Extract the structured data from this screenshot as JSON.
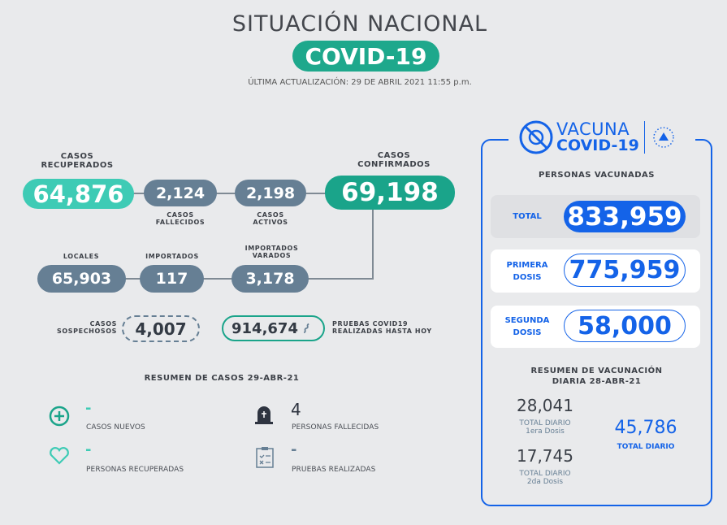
{
  "header": {
    "title": "SITUACIÓN NACIONAL",
    "badge": "COVID-19",
    "updated": "ÚLTIMA ACTUALIZACIÓN: 29 DE ABRIL 2021 11:55 p.m."
  },
  "cases": {
    "recuperados": {
      "label1": "CASOS",
      "label2": "RECUPERADOS",
      "value": "64,876"
    },
    "fallecidos": {
      "label1": "CASOS",
      "label2": "FALLECIDOS",
      "value": "2,124"
    },
    "activos": {
      "label1": "CASOS",
      "label2": "ACTIVOS",
      "value": "2,198"
    },
    "confirmados": {
      "label1": "CASOS",
      "label2": "CONFIRMADOS",
      "value": "69,198"
    },
    "locales": {
      "label": "LOCALES",
      "value": "65,903"
    },
    "importados": {
      "label": "IMPORTADOS",
      "value": "117"
    },
    "varados": {
      "label1": "IMPORTADOS",
      "label2": "VARADOS",
      "value": "3,178"
    },
    "sospechosos": {
      "label1": "CASOS",
      "label2": "SOSPECHOSOS",
      "value": "4,007"
    },
    "pruebas": {
      "label1": "PRUEBAS COVID19",
      "label2": "REALIZADAS HASTA HOY",
      "value": "914,674"
    }
  },
  "summary": {
    "title": "RESUMEN DE CASOS 29-ABR-21",
    "items": [
      {
        "value": "-",
        "label": "CASOS NUEVOS"
      },
      {
        "value": "4",
        "label": "PERSONAS FALLECIDAS"
      },
      {
        "value": "-",
        "label": "PERSONAS RECUPERADAS"
      },
      {
        "value": "-",
        "label": "PRUEBAS REALIZADAS"
      }
    ]
  },
  "vaccine": {
    "logo1": "VACUNA",
    "logo2": "COVID-19",
    "title": "PERSONAS VACUNADAS",
    "total": {
      "label": "TOTAL",
      "value": "833,959"
    },
    "primera": {
      "label1": "PRIMERA",
      "label2": "DOSIS",
      "value": "775,959"
    },
    "segunda": {
      "label1": "SEGUNDA",
      "label2": "DOSIS",
      "value": "58,000"
    },
    "daily_title1": "RESUMEN DE VACUNACIÓN",
    "daily_title2": "DIARIA 28-ABR-21",
    "d1": {
      "value": "28,041",
      "label1": "TOTAL DIARIO",
      "label2": "1era Dosis"
    },
    "d2": {
      "value": "17,745",
      "label1": "TOTAL DIARIO",
      "label2": "2da Dosis"
    },
    "total_daily": {
      "value": "45,786",
      "label": "TOTAL DIARIO"
    }
  },
  "colors": {
    "teal": "#1aa48a",
    "teal_light": "#3ecbb5",
    "slate": "#667f94",
    "blue": "#1463e8"
  }
}
